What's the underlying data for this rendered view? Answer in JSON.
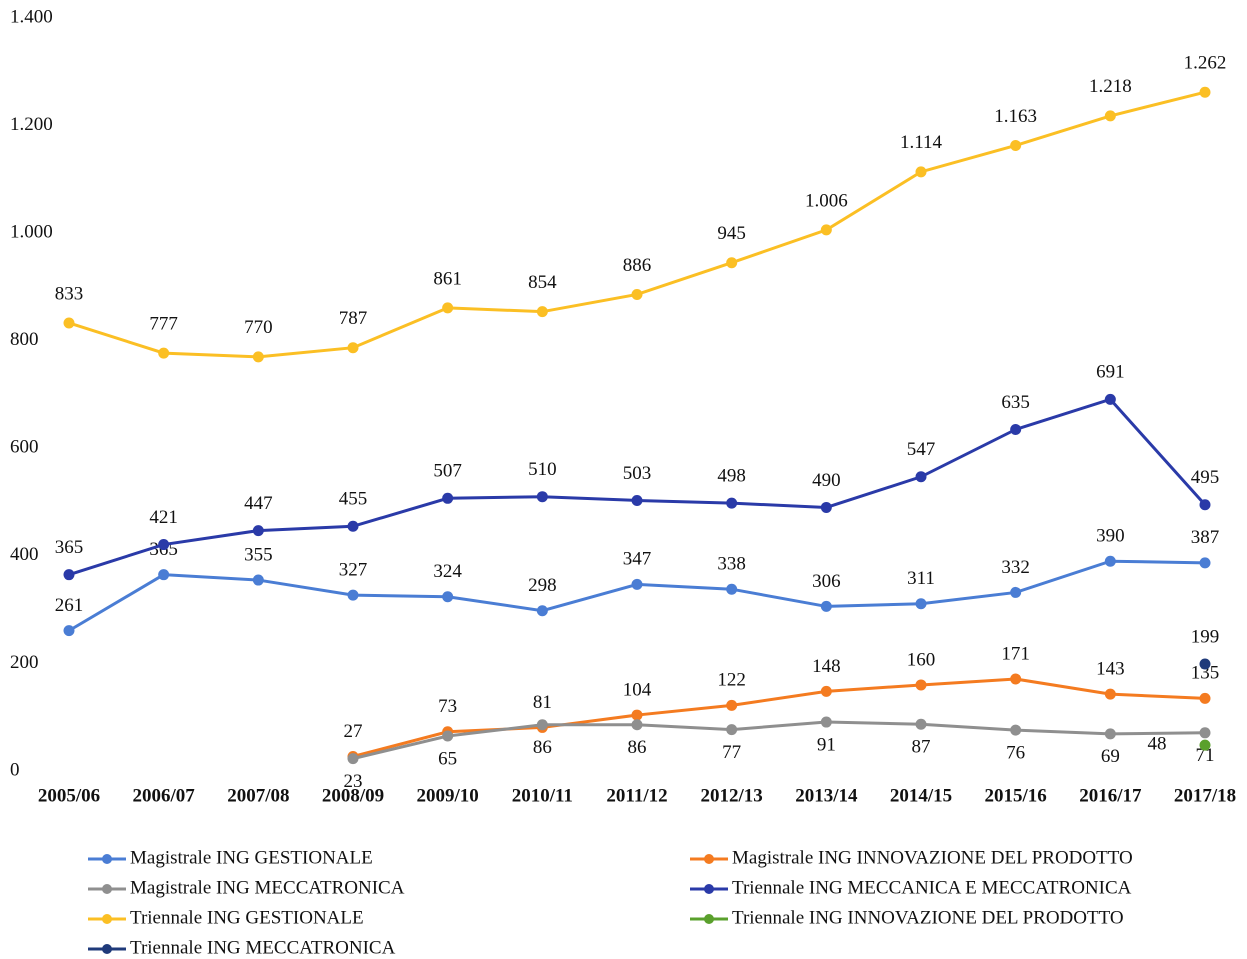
{
  "chart_data": {
    "type": "line",
    "categories": [
      "2005/06",
      "2006/07",
      "2007/08",
      "2008/09",
      "2009/10",
      "2010/11",
      "2011/12",
      "2012/13",
      "2013/14",
      "2014/15",
      "2015/16",
      "2016/17",
      "2017/18"
    ],
    "ylim": [
      0,
      1400
    ],
    "yticks": [
      0,
      200,
      400,
      600,
      800,
      {
        "value": 1000,
        "label": "1.000"
      },
      {
        "value": 1200,
        "label": "1.200"
      },
      {
        "value": 1400,
        "label": "1.400"
      }
    ],
    "grid": false,
    "legend": "bottom",
    "series": [
      {
        "name": "Magistrale ING GESTIONALE",
        "color": "#4a7dd4",
        "values": [
          261,
          365,
          355,
          327,
          324,
          298,
          347,
          338,
          306,
          311,
          332,
          390,
          387
        ]
      },
      {
        "name": "Magistrale ING INNOVAZIONE DEL PRODOTTO",
        "color": "#f47b20",
        "values": [
          null,
          null,
          null,
          27,
          73,
          81,
          104,
          122,
          148,
          160,
          171,
          143,
          135
        ]
      },
      {
        "name": "Magistrale ING MECCATRONICA",
        "color": "#8f8f8f",
        "values": [
          null,
          null,
          null,
          23,
          65,
          86,
          86,
          77,
          91,
          87,
          76,
          69,
          71
        ]
      },
      {
        "name": "Triennale ING MECCANICA E MECCATRONICA",
        "color": "#2a3aa8",
        "values": [
          365,
          421,
          447,
          455,
          507,
          510,
          503,
          498,
          490,
          547,
          635,
          691,
          495
        ]
      },
      {
        "name": "Triennale ING GESTIONALE",
        "color": "#fbbf24",
        "values": [
          833,
          777,
          770,
          787,
          861,
          854,
          886,
          945,
          1006,
          1114,
          1163,
          1218,
          1262
        ],
        "value_labels": [
          "833",
          "777",
          "770",
          "787",
          "861",
          "854",
          "886",
          "945",
          "1.006",
          "1.114",
          "1.163",
          "1.218",
          "1.262"
        ]
      },
      {
        "name": "Triennale ING INNOVAZIONE DEL PRODOTTO",
        "color": "#5aa02c",
        "values": [
          null,
          null,
          null,
          null,
          null,
          null,
          null,
          null,
          null,
          null,
          null,
          null,
          48
        ]
      },
      {
        "name": "Triennale ING MECCATRONICA",
        "color": "#1f3a7a",
        "values": [
          null,
          null,
          null,
          null,
          null,
          null,
          null,
          null,
          null,
          null,
          null,
          null,
          199
        ]
      }
    ]
  }
}
